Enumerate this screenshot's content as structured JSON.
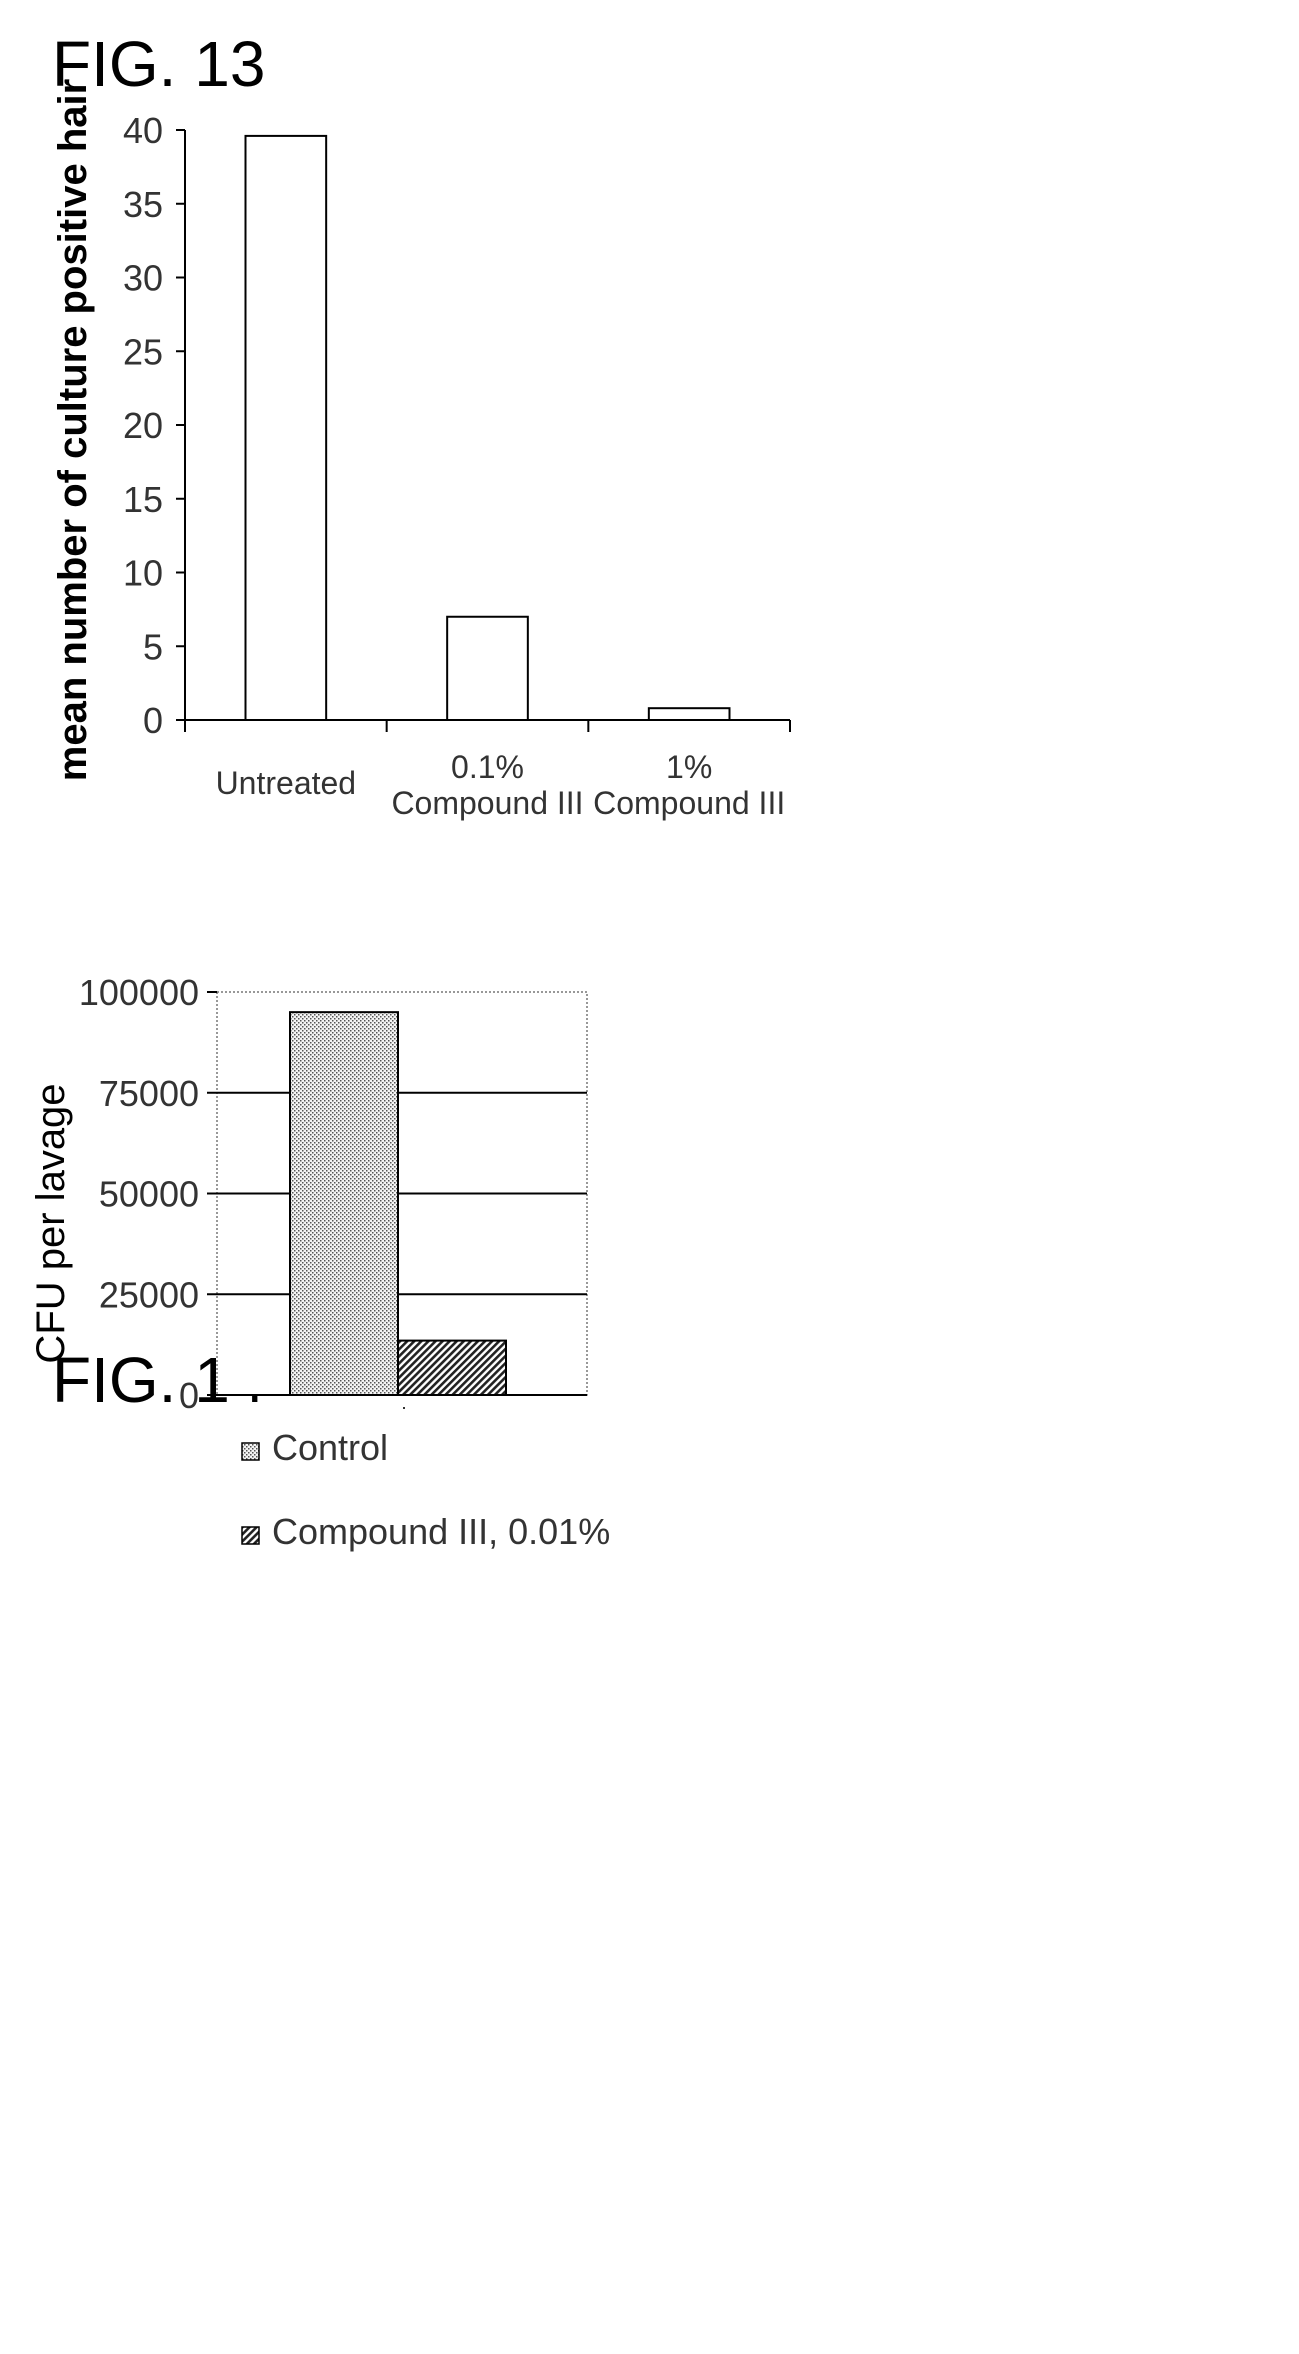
{
  "figures": {
    "fig13_label": "FIG. 13",
    "fig14_label": "FIG. 14"
  },
  "chart_data": [
    {
      "type": "bar",
      "categories": [
        [
          "Untreated"
        ],
        [
          "0.1%",
          "Compound III"
        ],
        [
          "1%",
          "Compound III"
        ]
      ],
      "values": [
        39.6,
        7.0,
        0.8
      ],
      "title": "",
      "xlabel": "",
      "ylabel": "mean number of culture positive hair",
      "ylim": [
        0,
        40
      ],
      "yticks": [
        0,
        5,
        10,
        15,
        20,
        25,
        30,
        35,
        40
      ],
      "grid": false,
      "bar_fill": "#ffffff",
      "bar_stroke": "#000000"
    },
    {
      "type": "bar",
      "categories": [
        ""
      ],
      "series": [
        {
          "name": "Control",
          "values": [
            95000
          ],
          "pattern": "dots"
        },
        {
          "name": "Compound III, 0.01%",
          "values": [
            13500
          ],
          "pattern": "hatch"
        }
      ],
      "title": "",
      "xlabel": "",
      "ylabel": "CFU per lavage",
      "ylim": [
        0,
        100000
      ],
      "yticks": [
        0,
        25000,
        50000,
        75000,
        100000
      ],
      "grid": true,
      "legend": "bottom"
    }
  ]
}
